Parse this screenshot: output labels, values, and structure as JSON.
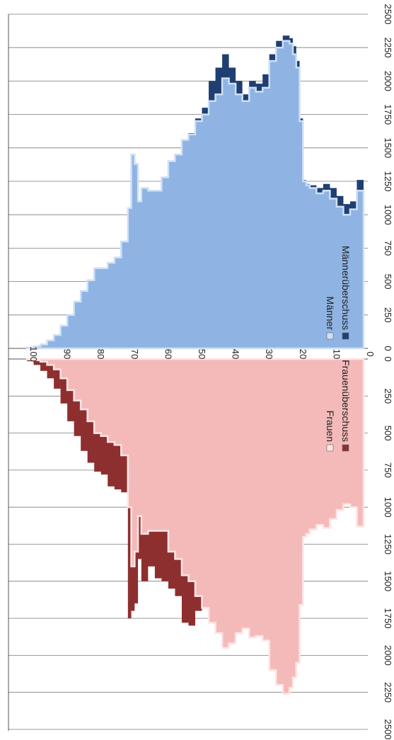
{
  "chart_data": {
    "type": "area",
    "orientation": "rotated-clockwise",
    "x_axis": {
      "ticks": [
        0,
        250,
        500,
        750,
        1000,
        1250,
        1500,
        1750,
        2000,
        2250,
        2500
      ],
      "range": [
        0,
        2500
      ]
    },
    "age_axis": {
      "ticks": [
        100,
        90,
        80,
        70,
        60,
        50,
        40,
        30,
        20,
        10,
        0
      ],
      "range": [
        0,
        100
      ]
    },
    "grid": true,
    "colors": {
      "men": "#8fb4e3",
      "men_light": "#cfe0f5",
      "men_surplus": "#1f3f73",
      "women": "#f4baba",
      "women_light": "#ffe4e4",
      "women_surplus": "#8e2f2f",
      "grid": "#7a7a7a"
    },
    "legends": [
      {
        "position": "bottom-right",
        "entries": [
          {
            "label": "Männer",
            "color": "#cfe0f5"
          },
          {
            "label": "Männerüberschuss",
            "color": "#1f3f73"
          }
        ]
      },
      {
        "position": "bottom-right",
        "entries": [
          {
            "label": "Frauen",
            "color": "#ffe4e4"
          },
          {
            "label": "Frauenüberschuss",
            "color": "#8e2f2f"
          }
        ]
      }
    ],
    "ages": [
      0,
      2,
      4,
      6,
      8,
      10,
      12,
      14,
      16,
      17,
      18,
      19,
      20,
      21,
      22,
      24,
      26,
      28,
      30,
      32,
      34,
      36,
      38,
      40,
      42,
      44,
      46,
      48,
      50,
      52,
      54,
      56,
      58,
      60,
      62,
      64,
      66,
      67,
      68,
      69,
      70,
      72,
      74,
      76,
      78,
      80,
      82,
      84,
      86,
      88,
      90,
      92,
      94,
      96,
      98,
      100
    ],
    "series": [
      {
        "name": "Männer",
        "values": [
          1180,
          1040,
          1000,
          1060,
          1120,
          1180,
          1160,
          1200,
          1220,
          1250,
          1700,
          2100,
          2200,
          2280,
          2300,
          2250,
          2150,
          1950,
          1920,
          1950,
          1850,
          1900,
          1980,
          2020,
          1900,
          1850,
          1750,
          1700,
          1600,
          1560,
          1450,
          1400,
          1280,
          1180,
          1180,
          1200,
          1100,
          1380,
          1450,
          1050,
          800,
          680,
          640,
          600,
          600,
          510,
          430,
          350,
          250,
          170,
          100,
          60,
          30,
          15,
          6,
          2
        ]
      },
      {
        "name": "Männerüberschuss",
        "values": [
          1260,
          1100,
          1080,
          1140,
          1200,
          1230,
          1200,
          1220,
          1230,
          1260,
          1720,
          2150,
          2260,
          2320,
          2340,
          2300,
          2200,
          2050,
          1980,
          2000,
          1900,
          2000,
          2100,
          2200,
          2100,
          2000,
          1800,
          1720,
          1610,
          1560,
          1450,
          1400,
          1280,
          1180,
          1180,
          1200,
          1100,
          1380,
          1450,
          1050,
          800,
          680,
          640,
          600,
          600,
          510,
          430,
          350,
          250,
          170,
          100,
          60,
          30,
          15,
          6,
          2
        ]
      },
      {
        "name": "Frauen",
        "values": [
          1130,
          1000,
          980,
          1020,
          1080,
          1140,
          1120,
          1150,
          1180,
          1200,
          1660,
          2050,
          2150,
          2220,
          2260,
          2200,
          2100,
          1900,
          1870,
          1880,
          1820,
          1850,
          1920,
          1950,
          1850,
          1780,
          1680,
          1600,
          1500,
          1460,
          1350,
          1300,
          1160,
          1160,
          1160,
          1180,
          1060,
          1300,
          1400,
          1000,
          650,
          580,
          560,
          520,
          500,
          420,
          340,
          280,
          210,
          130,
          70,
          40,
          18,
          8,
          3,
          1
        ]
      },
      {
        "name": "Frauenüberschuss",
        "values": [
          1130,
          1000,
          980,
          1020,
          1080,
          1140,
          1120,
          1150,
          1180,
          1200,
          1660,
          2050,
          2150,
          2220,
          2260,
          2200,
          2100,
          1900,
          1870,
          1880,
          1820,
          1850,
          1920,
          1950,
          1850,
          1780,
          1680,
          1700,
          1800,
          1780,
          1600,
          1550,
          1500,
          1480,
          1400,
          1500,
          1350,
          1650,
          1700,
          1750,
          900,
          880,
          860,
          780,
          760,
          700,
          620,
          520,
          420,
          300,
          200,
          130,
          80,
          40,
          15,
          5
        ]
      }
    ]
  }
}
